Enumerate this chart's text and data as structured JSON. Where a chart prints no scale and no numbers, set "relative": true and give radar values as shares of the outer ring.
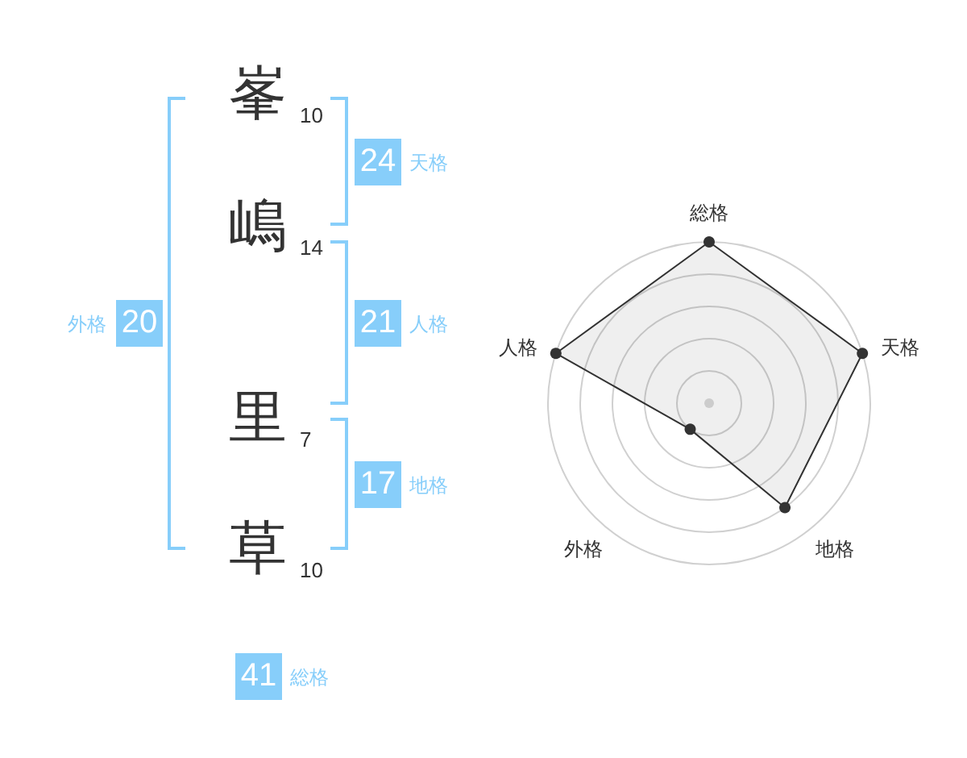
{
  "chart_data": [
    {
      "type": "other",
      "categories": [
        "峯",
        "嶋",
        "里",
        "草"
      ],
      "values": [
        10,
        14,
        7,
        10
      ],
      "data_labels": true
    },
    {
      "type": "other",
      "categories": [
        "天格",
        "人格",
        "地格",
        "外格",
        "総格"
      ],
      "values": [
        24,
        21,
        17,
        20,
        41
      ],
      "color": "#87cefa",
      "data_labels": true
    },
    {
      "type": "radar",
      "categories": [
        "総格",
        "天格",
        "地格",
        "外格",
        "人格"
      ],
      "relative": true,
      "marker": "circle",
      "series": [
        {
          "color": "#333333",
          "values": [
            1,
            1,
            0.8,
            0.2,
            1
          ]
        }
      ]
    }
  ]
}
